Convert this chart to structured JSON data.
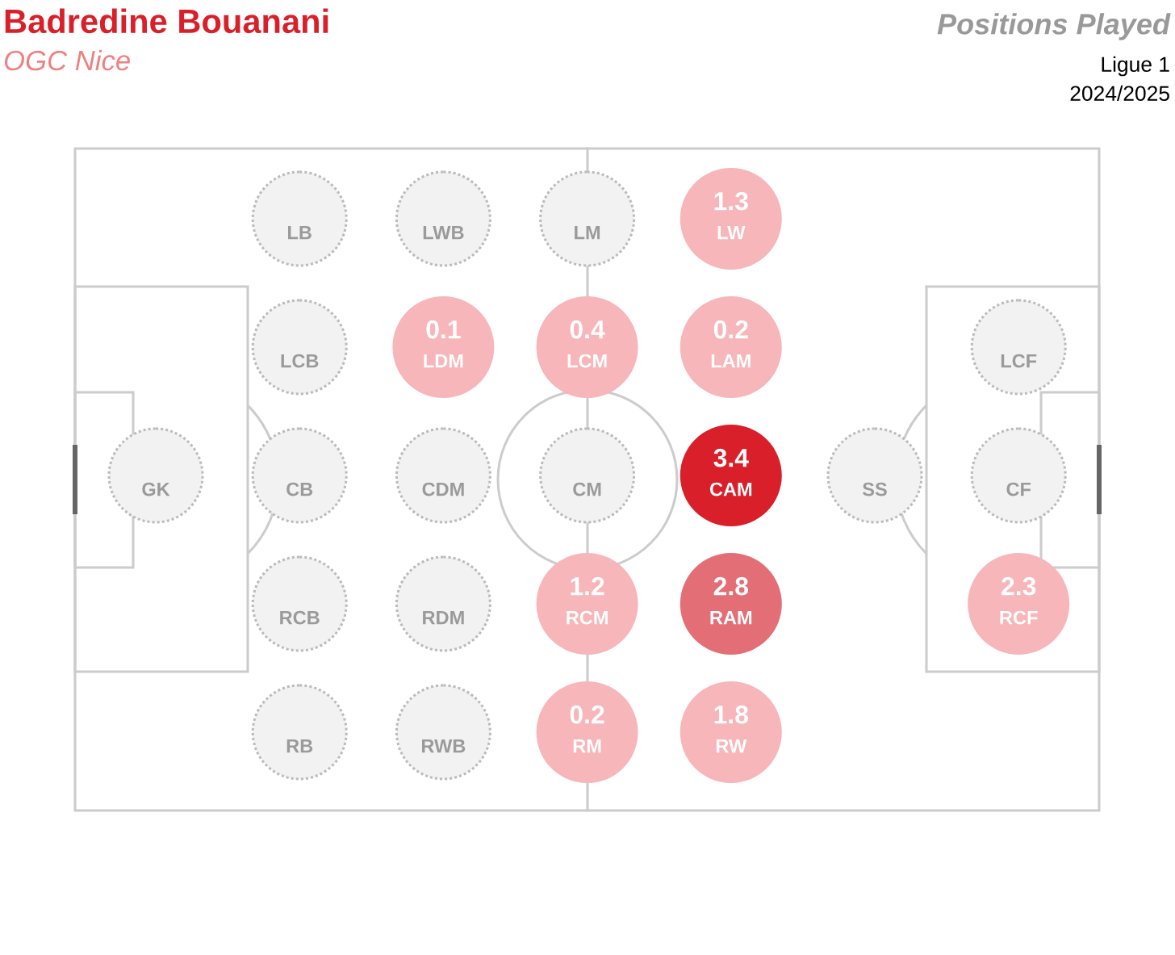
{
  "chart_data": {
    "type": "other",
    "title": "Badredine Bouanani",
    "subtitle": "OGC Nice",
    "annotations": [
      "Positions Played",
      "Ligue 1",
      "2024/2025"
    ],
    "categories": [
      "GK",
      "LB",
      "LCB",
      "CB",
      "RCB",
      "RB",
      "LWB",
      "LDM",
      "CDM",
      "RDM",
      "RWB",
      "LM",
      "LCM",
      "CM",
      "RCM",
      "RM",
      "LW",
      "LAM",
      "CAM",
      "RAM",
      "RW",
      "SS",
      "LCF",
      "CF",
      "RCF"
    ],
    "values": [
      null,
      null,
      null,
      null,
      null,
      null,
      null,
      0.1,
      null,
      null,
      null,
      null,
      0.4,
      null,
      1.2,
      0.2,
      1.3,
      0.2,
      3.4,
      2.8,
      1.8,
      null,
      null,
      null,
      2.3
    ],
    "data_labels": true
  }
}
